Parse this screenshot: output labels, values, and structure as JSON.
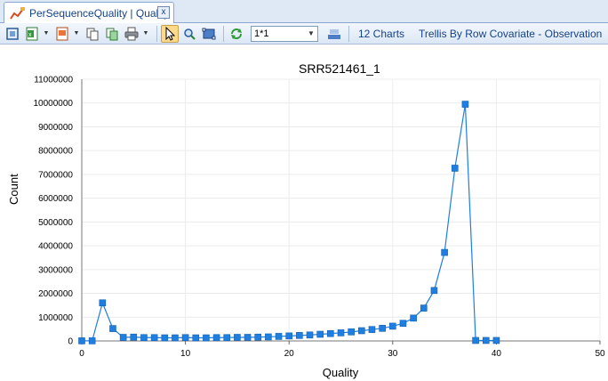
{
  "tab": {
    "label": "PerSequenceQuality | Quality",
    "close_glyph": "x"
  },
  "toolbar": {
    "combo_value": "1*1",
    "charts_label": "12 Charts",
    "trellis_label": "Trellis By Row Covariate - Observation"
  },
  "icons": [
    "chart-tab-icon",
    "fit-icon",
    "excel-export-icon",
    "image-export-icon",
    "copy-icon",
    "copy-image-icon",
    "print-icon",
    "select-pointer-icon",
    "zoom-icon",
    "zoom-rect-icon",
    "refresh-icon",
    "layout-icon"
  ],
  "chart_data": {
    "type": "line",
    "title": "SRR521461_1",
    "xlabel": "Quality",
    "ylabel": "Count",
    "xlim": [
      0,
      50
    ],
    "ylim": [
      0,
      11000000
    ],
    "x_ticks": [
      0,
      10,
      20,
      30,
      40,
      50
    ],
    "y_ticks": [
      0,
      1000000,
      2000000,
      3000000,
      4000000,
      5000000,
      6000000,
      7000000,
      8000000,
      9000000,
      10000000,
      11000000
    ],
    "grid": true,
    "series_color": "#1e7fe0",
    "x": [
      0,
      1,
      2,
      3,
      4,
      5,
      6,
      7,
      8,
      9,
      10,
      11,
      12,
      13,
      14,
      15,
      16,
      17,
      18,
      19,
      20,
      21,
      22,
      23,
      24,
      25,
      26,
      27,
      28,
      29,
      30,
      31,
      32,
      33,
      34,
      35,
      36,
      37,
      38,
      39,
      40
    ],
    "y": [
      5000,
      5000,
      1600000,
      520000,
      150000,
      160000,
      140000,
      140000,
      130000,
      130000,
      140000,
      130000,
      130000,
      140000,
      140000,
      150000,
      150000,
      160000,
      170000,
      190000,
      210000,
      230000,
      250000,
      280000,
      310000,
      340000,
      380000,
      430000,
      480000,
      530000,
      620000,
      740000,
      960000,
      1380000,
      2120000,
      3720000,
      7260000,
      9950000,
      20000,
      20000,
      20000
    ]
  }
}
